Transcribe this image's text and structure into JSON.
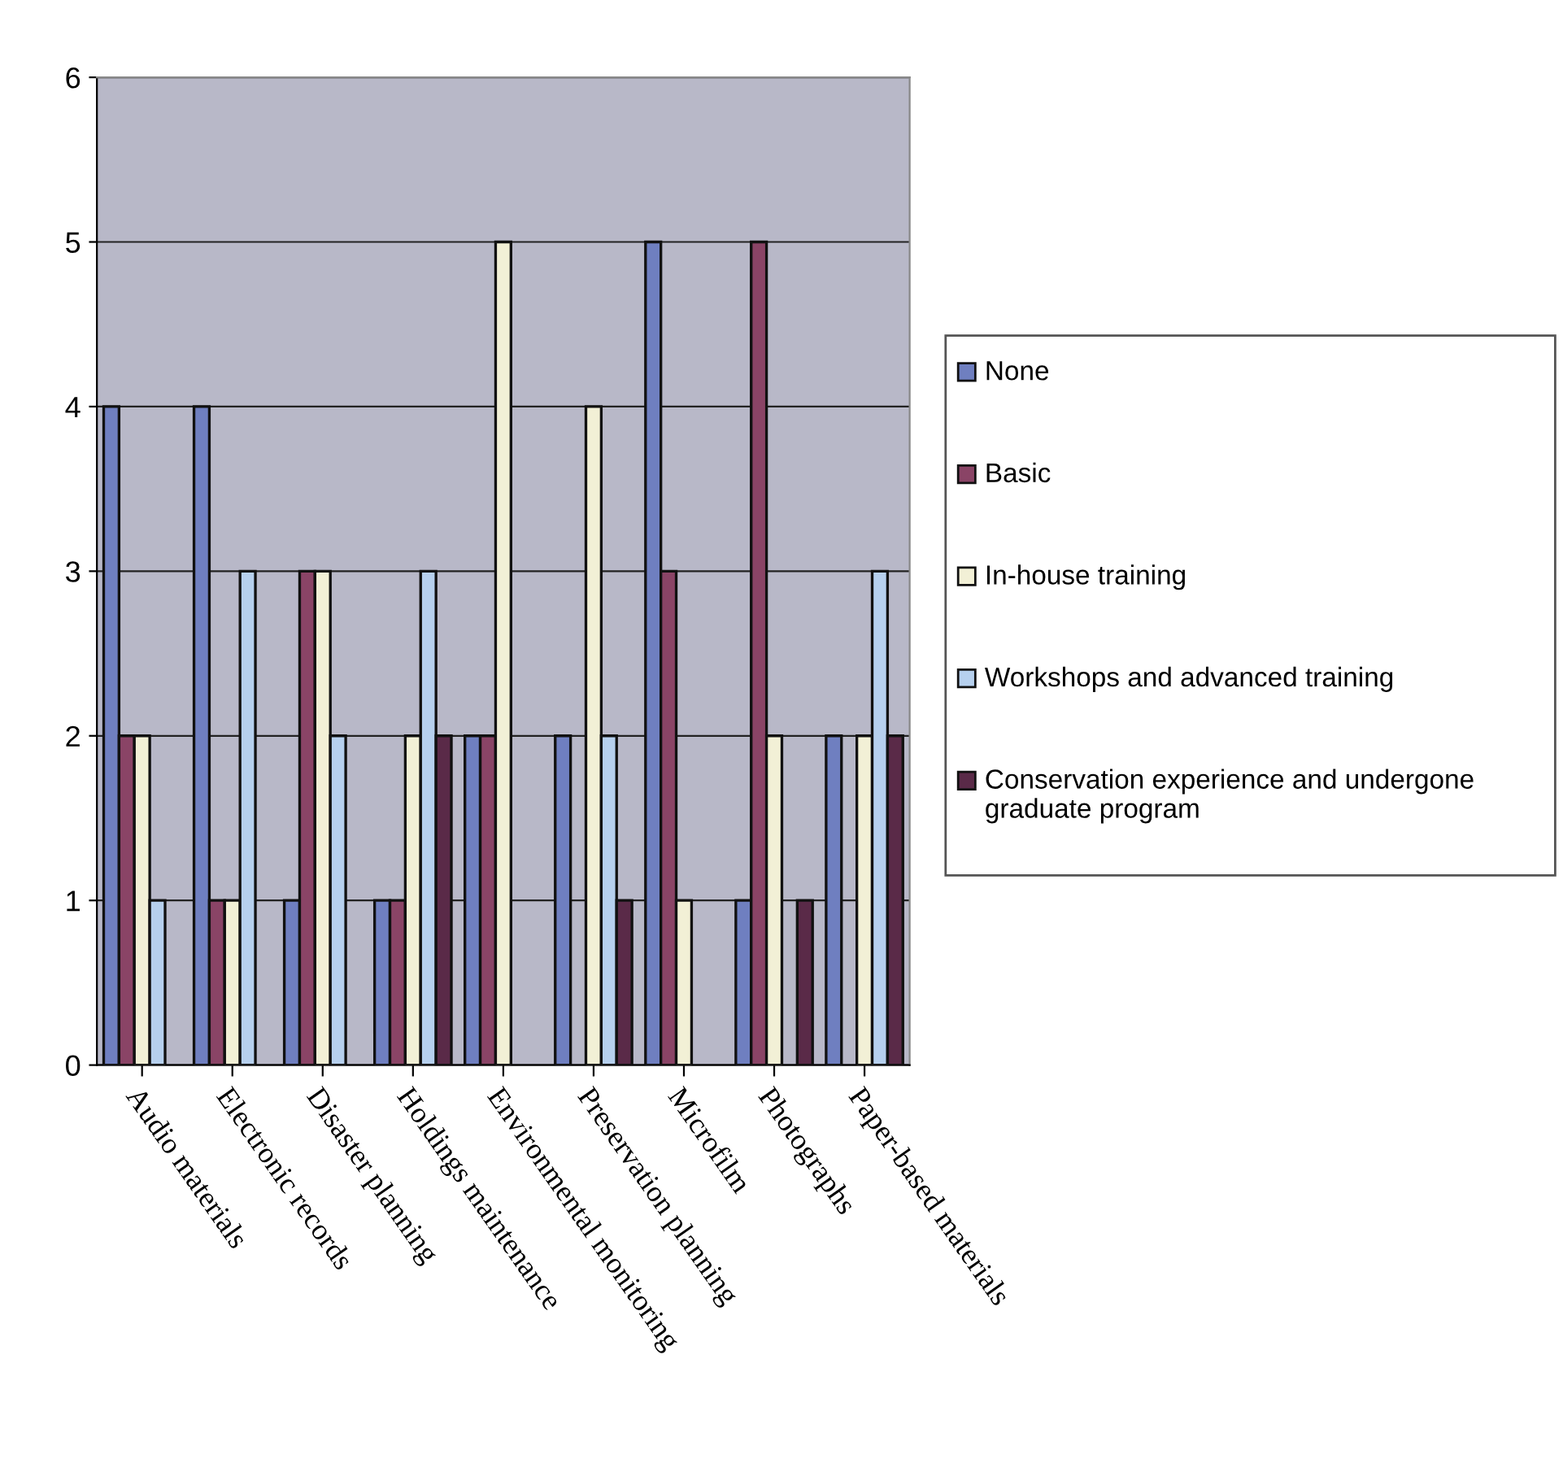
{
  "chart_data": {
    "type": "bar",
    "categories": [
      "Audio materials",
      "Electronic records",
      "Disaster planning",
      "Holdings maintenance",
      "Environmental monitoring",
      "Preservation planning",
      "Microfilm",
      "Photographs",
      "Paper-based materials"
    ],
    "series": [
      {
        "name": "None",
        "color": "#6f7fc0",
        "values": [
          4,
          4,
          1,
          1,
          2,
          2,
          5,
          1,
          2
        ]
      },
      {
        "name": "Basic",
        "color": "#8a4466",
        "values": [
          2,
          1,
          3,
          1,
          2,
          0,
          3,
          5,
          0
        ]
      },
      {
        "name": "In-house training",
        "color": "#f2f0d6",
        "values": [
          2,
          1,
          3,
          2,
          5,
          4,
          1,
          2,
          2
        ]
      },
      {
        "name": "Workshops and advanced training",
        "color": "#b6d0ee",
        "values": [
          1,
          3,
          2,
          3,
          0,
          2,
          0,
          0,
          3
        ]
      },
      {
        "name": "Conservation experience and undergone graduate program",
        "color": "#5a2a48",
        "values": [
          0,
          0,
          0,
          2,
          0,
          1,
          0,
          1,
          2
        ]
      }
    ],
    "ylim": [
      0,
      6
    ],
    "yticks": [
      0,
      1,
      2,
      3,
      4,
      5,
      6
    ],
    "grid": "y",
    "legend": "right"
  }
}
